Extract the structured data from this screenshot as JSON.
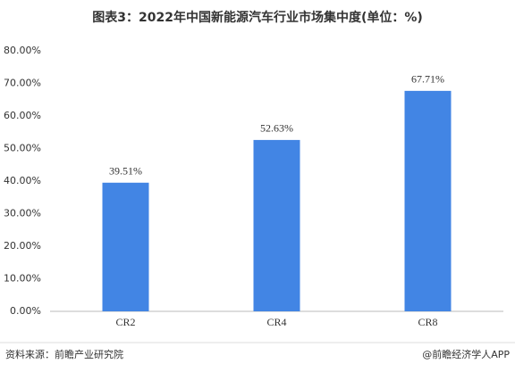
{
  "chart_data": {
    "type": "bar",
    "title": "图表3：2022年中国新能源汽车行业市场集中度(单位：%)",
    "categories": [
      "CR2",
      "CR4",
      "CR8"
    ],
    "values": [
      39.51,
      52.63,
      67.71
    ],
    "value_labels": [
      "39.51%",
      "52.63%",
      "67.71%"
    ],
    "color": "#4285e4",
    "ylim": [
      0,
      80
    ],
    "yticks": [
      {
        "value": 0,
        "label": "0.00%"
      },
      {
        "value": 10,
        "label": "10.00%"
      },
      {
        "value": 20,
        "label": "20.00%"
      },
      {
        "value": 30,
        "label": "30.00%"
      },
      {
        "value": 40,
        "label": "40.00%"
      },
      {
        "value": 50,
        "label": "50.00%"
      },
      {
        "value": 60,
        "label": "60.00%"
      },
      {
        "value": 70,
        "label": "70.00%"
      },
      {
        "value": 80,
        "label": "80.00%"
      }
    ],
    "grid": false,
    "source": "资料来源：前瞻产业研究院",
    "credit": "@前瞻经济学人APP"
  }
}
